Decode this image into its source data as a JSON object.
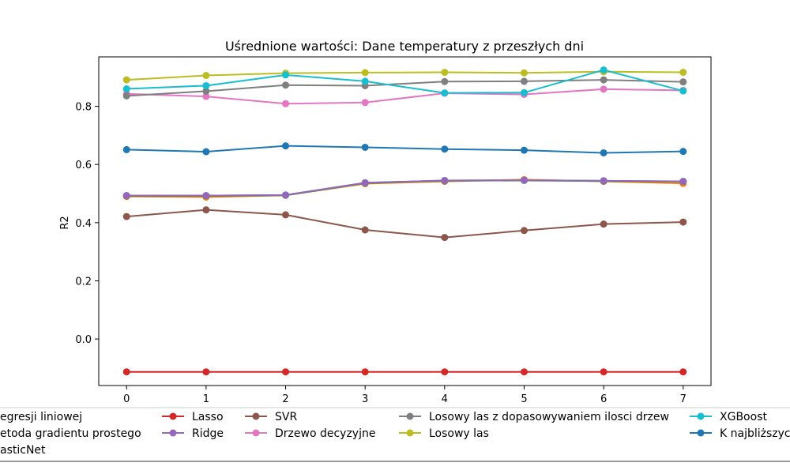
{
  "chart_data": {
    "type": "line",
    "title": "Uśrednione wartości: Dane temperatury z przeszłych dni",
    "xlabel": "",
    "ylabel": "R2",
    "x": [
      0,
      1,
      2,
      3,
      4,
      5,
      6,
      7
    ],
    "xlim": [
      -0.35,
      7.35
    ],
    "ylim": [
      -0.16,
      0.97
    ],
    "yticks": [
      0.0,
      0.2,
      0.4,
      0.6,
      0.8
    ],
    "grid": false,
    "legend_placement": "bottom",
    "series": [
      {
        "name": "Model regresji liniowej",
        "legend_visible": "egresji liniowej",
        "color": "#1f77b4",
        "values": [
          0.493,
          0.493,
          0.495,
          0.537,
          0.545,
          0.546,
          0.544,
          0.542
        ]
      },
      {
        "name": "Metoda gradientu prostego",
        "legend_visible": "etoda gradientu prostego",
        "color": "#ff7f0e",
        "values": [
          0.49,
          0.488,
          0.494,
          0.534,
          0.542,
          0.548,
          0.542,
          0.535
        ]
      },
      {
        "name": "ElasticNet",
        "legend_visible": "asticNet",
        "color": "#2ca02c",
        "values": [
          0.492,
          0.492,
          0.494,
          0.536,
          0.544,
          0.545,
          0.543,
          0.541
        ]
      },
      {
        "name": "Lasso",
        "color": "#d62728",
        "values": [
          -0.113,
          -0.113,
          -0.113,
          -0.113,
          -0.113,
          -0.113,
          -0.113,
          -0.113
        ]
      },
      {
        "name": "Ridge",
        "color": "#9467bd",
        "values": [
          0.493,
          0.493,
          0.495,
          0.537,
          0.545,
          0.546,
          0.544,
          0.542
        ]
      },
      {
        "name": "SVR",
        "color": "#8c564b",
        "values": [
          0.421,
          0.444,
          0.427,
          0.375,
          0.349,
          0.373,
          0.395,
          0.402
        ]
      },
      {
        "name": "Drzewo decyzyjne",
        "color": "#e377c2",
        "values": [
          0.843,
          0.834,
          0.809,
          0.813,
          0.845,
          0.841,
          0.859,
          0.855
        ]
      },
      {
        "name": "Losowy las z dopasowywaniem ilosci drzew",
        "color": "#7f7f7f",
        "values": [
          0.836,
          0.852,
          0.873,
          0.871,
          0.885,
          0.886,
          0.891,
          0.884
        ]
      },
      {
        "name": "Losowy las",
        "color": "#bcbd22",
        "values": [
          0.891,
          0.906,
          0.914,
          0.916,
          0.917,
          0.915,
          0.919,
          0.917
        ]
      },
      {
        "name": "XGBoost",
        "color": "#17becf",
        "values": [
          0.86,
          0.871,
          0.908,
          0.886,
          0.846,
          0.847,
          0.925,
          0.853
        ]
      },
      {
        "name": "K najbliższych sąsiadów",
        "legend_visible": "K najbliższyc",
        "color": "#1f77b4",
        "values": [
          0.651,
          0.644,
          0.664,
          0.659,
          0.653,
          0.649,
          0.64,
          0.645
        ]
      }
    ]
  }
}
